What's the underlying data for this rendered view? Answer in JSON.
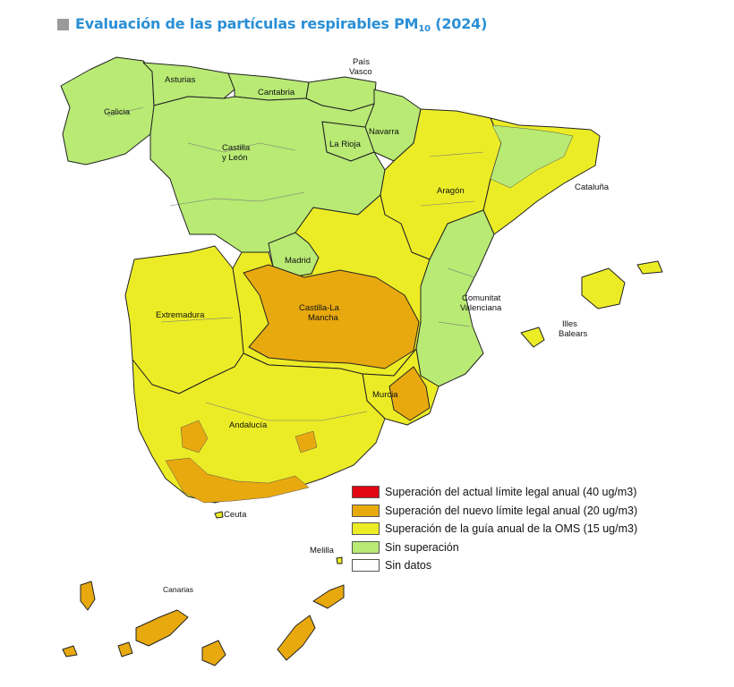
{
  "title": {
    "main": "Evaluación de las partículas respirables PM",
    "sub": "10",
    "year": "(2024)"
  },
  "colors": {
    "title": "#2a8fd6",
    "red": "#e30613",
    "orange": "#e8a90f",
    "yellow": "#ecec26",
    "green": "#b8ea74",
    "white": "#ffffff"
  },
  "regions": {
    "galicia": "Galicia",
    "asturias": "Asturias",
    "cantabria": "Cantabria",
    "pais_vasco": "País\nVasco",
    "navarra": "Navarra",
    "la_rioja": "La Rioja",
    "castilla_leon": "Castilla\ny León",
    "aragon": "Aragón",
    "cataluna": "Cataluña",
    "madrid": "Madrid",
    "castilla_la_mancha": "Castilla-La\nMancha",
    "extremadura": "Extremadura",
    "comunitat_valenciana": "Comunitat\nValenciana",
    "illes_balears": "Illes\nBalears",
    "murcia": "Murcia",
    "andalucia": "Andalucía",
    "ceuta": "Ceuta",
    "melilla": "Melilla",
    "canarias": "Canarias"
  },
  "legend": [
    {
      "label": "Superación del actual límite legal anual (40 ug/m3)",
      "color": "#e30613"
    },
    {
      "label": "Superación del nuevo límite legal anual (20 ug/m3)",
      "color": "#e8a90f"
    },
    {
      "label": "Superación de la guía anual de la OMS (15 ug/m3)",
      "color": "#ecec26"
    },
    {
      "label": "Sin superación",
      "color": "#b8ea74"
    },
    {
      "label": "Sin datos",
      "color": "#ffffff"
    }
  ]
}
